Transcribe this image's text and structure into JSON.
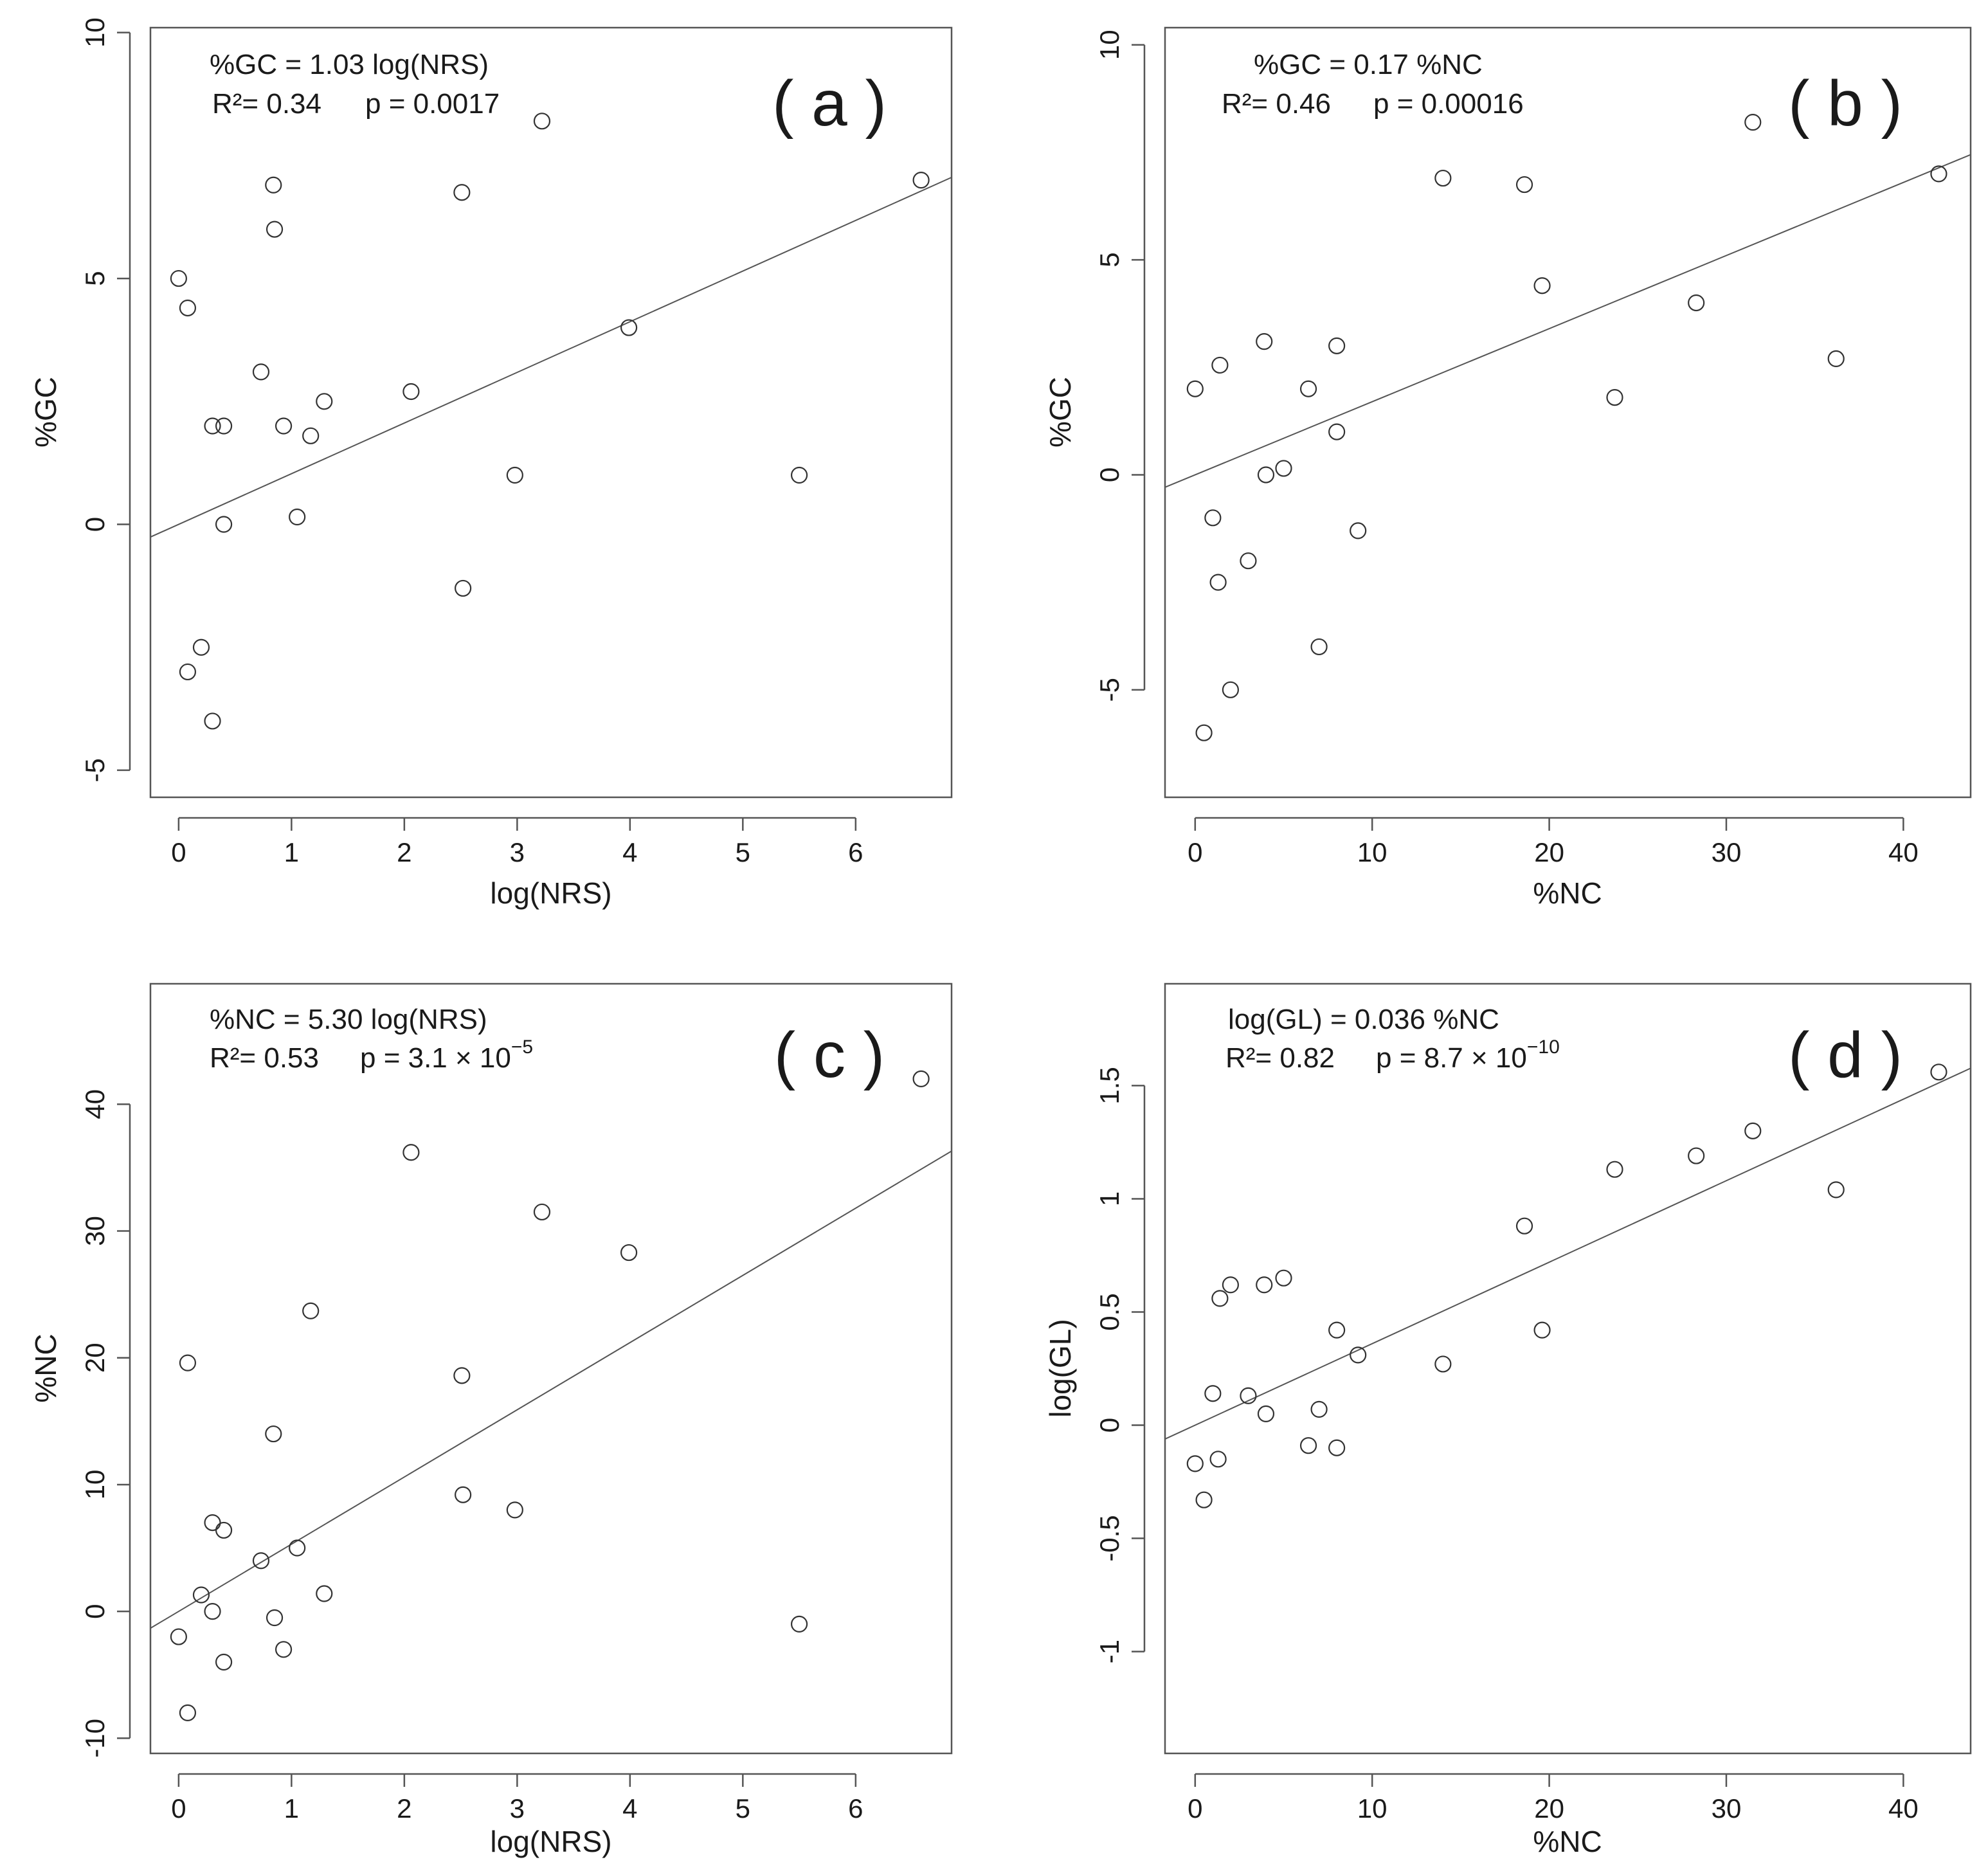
{
  "chart_data": [
    {
      "id": "a",
      "type": "scatter",
      "panel_label": "( a )",
      "xlabel": "log(NRS)",
      "ylabel": "%GC",
      "xlim": [
        -0.25,
        6.85
      ],
      "ylim": [
        -5.55,
        10.1
      ],
      "xticks": [
        0,
        1,
        2,
        3,
        4,
        5,
        6
      ],
      "yticks": [
        -5,
        0,
        5,
        10
      ],
      "equation": "%GC = 1.03 log(NRS)",
      "stats": {
        "r2": "R²= 0.34",
        "p": "p = 0.0017",
        "p_sup": ""
      },
      "fit": {
        "slope": 1.03,
        "intercept": 0
      },
      "points": [
        [
          0,
          5.0
        ],
        [
          0.08,
          4.4
        ],
        [
          0.08,
          -3.0
        ],
        [
          0.2,
          -2.5
        ],
        [
          0.3,
          2.0
        ],
        [
          0.3,
          -4.0
        ],
        [
          0.4,
          2.0
        ],
        [
          0.4,
          0.0
        ],
        [
          0.73,
          3.1
        ],
        [
          0.84,
          6.9
        ],
        [
          0.85,
          6.0
        ],
        [
          0.93,
          2.0
        ],
        [
          1.05,
          0.15
        ],
        [
          1.17,
          1.8
        ],
        [
          1.29,
          2.5
        ],
        [
          2.06,
          2.7
        ],
        [
          2.51,
          6.75
        ],
        [
          2.52,
          -1.3
        ],
        [
          2.98,
          1.0
        ],
        [
          3.22,
          8.2
        ],
        [
          3.99,
          4.0
        ],
        [
          5.5,
          1.0
        ],
        [
          6.58,
          7.0
        ]
      ]
    },
    {
      "id": "b",
      "type": "scatter",
      "panel_label": "( b )",
      "xlabel": "%NC",
      "ylabel": "%GC",
      "xlim": [
        -1.7,
        43.8
      ],
      "ylim": [
        -7.5,
        10.4
      ],
      "xticks": [
        0,
        10,
        20,
        30,
        40
      ],
      "yticks": [
        -5,
        0,
        5,
        10
      ],
      "equation": "%GC = 0.17 %NC",
      "stats": {
        "r2": "R²= 0.46",
        "p": "p = 0.00016",
        "p_sup": ""
      },
      "fit": {
        "slope": 0.17,
        "intercept": 0
      },
      "points": [
        [
          0,
          2.0
        ],
        [
          0.5,
          -6.0
        ],
        [
          1.0,
          -1.0
        ],
        [
          1.3,
          -2.5
        ],
        [
          1.4,
          2.55
        ],
        [
          2.0,
          -5.0
        ],
        [
          3.0,
          -2.0
        ],
        [
          3.9,
          3.1
        ],
        [
          4.0,
          0.0
        ],
        [
          5.0,
          0.15
        ],
        [
          6.4,
          2.0
        ],
        [
          7.0,
          -4.0
        ],
        [
          8.0,
          3.0
        ],
        [
          8.0,
          1.0
        ],
        [
          9.2,
          -1.3
        ],
        [
          14.0,
          6.9
        ],
        [
          18.6,
          6.75
        ],
        [
          19.6,
          4.4
        ],
        [
          23.7,
          1.8
        ],
        [
          28.3,
          4.0
        ],
        [
          31.5,
          8.2
        ],
        [
          36.2,
          2.7
        ],
        [
          42.0,
          7.0
        ]
      ]
    },
    {
      "id": "c",
      "type": "scatter",
      "panel_label": "( c )",
      "xlabel": "log(NRS)",
      "ylabel": "%NC",
      "xlim": [
        -0.25,
        6.85
      ],
      "ylim": [
        -11.2,
        49.5
      ],
      "xticks": [
        0,
        1,
        2,
        3,
        4,
        5,
        6
      ],
      "yticks": [
        -10,
        0,
        10,
        20,
        30,
        40
      ],
      "equation": "%NC = 5.30 log(NRS)",
      "stats": {
        "r2": "R²= 0.53",
        "p": "p = 3.1 × 10",
        "p_sup": "−5"
      },
      "fit": {
        "slope": 5.3,
        "intercept": 0
      },
      "points": [
        [
          0,
          -2.0
        ],
        [
          0.08,
          19.6
        ],
        [
          0.08,
          -8.0
        ],
        [
          0.2,
          1.3
        ],
        [
          0.3,
          7.0
        ],
        [
          0.3,
          0.0
        ],
        [
          0.4,
          6.4
        ],
        [
          0.4,
          -4.0
        ],
        [
          0.73,
          4.0
        ],
        [
          0.84,
          14.0
        ],
        [
          0.85,
          -0.5
        ],
        [
          0.93,
          -3.0
        ],
        [
          1.05,
          5.0
        ],
        [
          1.17,
          23.7
        ],
        [
          1.29,
          1.4
        ],
        [
          2.06,
          36.2
        ],
        [
          2.51,
          18.6
        ],
        [
          2.52,
          9.2
        ],
        [
          2.98,
          8.0
        ],
        [
          3.22,
          31.5
        ],
        [
          3.99,
          28.3
        ],
        [
          5.5,
          -1.0
        ],
        [
          6.58,
          42.0
        ]
      ]
    },
    {
      "id": "d",
      "type": "scatter",
      "panel_label": "( d )",
      "xlabel": "%NC",
      "ylabel": "log(GL)",
      "xlim": [
        -1.7,
        43.8
      ],
      "ylim": [
        -1.45,
        1.95
      ],
      "xticks": [
        0,
        10,
        20,
        30,
        40
      ],
      "yticks": [
        -1.0,
        -0.5,
        0.0,
        0.5,
        1.0,
        1.5
      ],
      "equation": "log(GL) = 0.036 %NC",
      "stats": {
        "r2": "R²= 0.82",
        "p": "p = 8.7 × 10",
        "p_sup": "−10"
      },
      "fit": {
        "slope": 0.036,
        "intercept": 0
      },
      "points": [
        [
          0,
          -0.17
        ],
        [
          0.5,
          -0.33
        ],
        [
          1.0,
          0.14
        ],
        [
          1.3,
          -0.15
        ],
        [
          1.4,
          0.56
        ],
        [
          2.0,
          0.62
        ],
        [
          3.0,
          0.13
        ],
        [
          3.9,
          0.62
        ],
        [
          4.0,
          0.05
        ],
        [
          5.0,
          0.65
        ],
        [
          6.4,
          -0.09
        ],
        [
          7.0,
          0.07
        ],
        [
          8.0,
          0.42
        ],
        [
          8.0,
          -0.1
        ],
        [
          9.2,
          0.31
        ],
        [
          14.0,
          0.27
        ],
        [
          18.6,
          0.88
        ],
        [
          19.6,
          0.42
        ],
        [
          23.7,
          1.13
        ],
        [
          28.3,
          1.19
        ],
        [
          31.5,
          1.3
        ],
        [
          36.2,
          1.04
        ],
        [
          42.0,
          1.56
        ]
      ]
    }
  ]
}
